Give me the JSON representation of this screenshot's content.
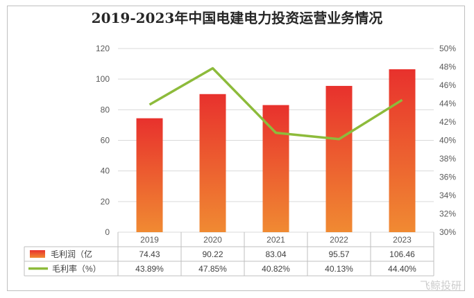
{
  "title": "2019-2023年中国电建电力投资运营业务情况",
  "watermark": "飞鲸投研",
  "chart_data": {
    "type": "bar",
    "title": "2019-2023年中国电建电力投资运营业务情况",
    "categories": [
      "2019",
      "2020",
      "2021",
      "2022",
      "2023"
    ],
    "series": [
      {
        "name": "毛利润（亿",
        "type": "bar",
        "axis": "left",
        "values": [
          74.43,
          90.22,
          83.04,
          95.57,
          106.46
        ],
        "labels": [
          "74.43",
          "90.22",
          "83.04",
          "95.57",
          "106.46"
        ],
        "color_top": "#e8312d",
        "color_bottom": "#f08a32"
      },
      {
        "name": "毛利率（%）",
        "type": "line",
        "axis": "right",
        "values": [
          43.89,
          47.85,
          40.82,
          40.13,
          44.4
        ],
        "labels": [
          "43.89%",
          "47.85%",
          "40.82%",
          "40.13%",
          "44.40%"
        ],
        "color": "#8dbb3b"
      }
    ],
    "y_left": {
      "min": 0,
      "max": 120,
      "ticks": [
        "0",
        "20",
        "40",
        "60",
        "80",
        "100",
        "120"
      ]
    },
    "y_right": {
      "min": 30,
      "max": 50,
      "ticks": [
        "30%",
        "32%",
        "34%",
        "36%",
        "38%",
        "40%",
        "42%",
        "44%",
        "46%",
        "48%",
        "50%"
      ]
    },
    "grid": true,
    "legend": "bottom-table"
  }
}
